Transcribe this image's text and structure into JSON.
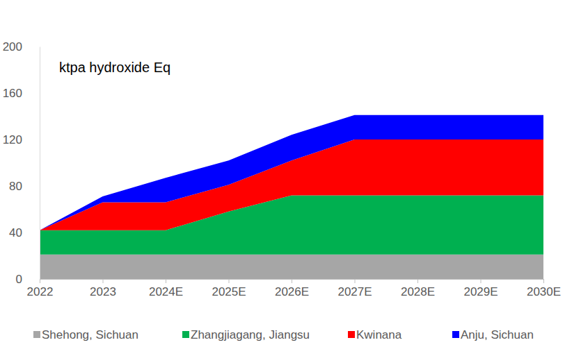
{
  "chart_data": {
    "type": "area",
    "stacked": true,
    "title": "ktpa hydroxide Eq",
    "categories": [
      "2022",
      "2023",
      "2024E",
      "2025E",
      "2026E",
      "2027E",
      "2028E",
      "2029E",
      "2030E"
    ],
    "series": [
      {
        "name": "Shehong, Sichuan",
        "color": "#a6a6a6",
        "values": [
          21,
          21,
          21,
          21,
          21,
          21,
          21,
          21,
          21
        ]
      },
      {
        "name": "Zhangjiagang, Jiangsu",
        "color": "#00b050",
        "values": [
          21,
          21,
          21,
          37,
          51,
          51,
          51,
          51,
          51
        ]
      },
      {
        "name": "Kwinana",
        "color": "#ff0000",
        "values": [
          0,
          24,
          24,
          23,
          30,
          48,
          48,
          48,
          48
        ]
      },
      {
        "name": "Anju, Sichuan",
        "color": "#0000ff",
        "values": [
          0,
          5,
          21,
          21,
          22,
          21,
          21,
          21,
          21
        ]
      }
    ],
    "ylim": [
      0,
      200
    ],
    "yticks": [
      0,
      40,
      80,
      120,
      160,
      200
    ],
    "grid": false,
    "legend": "bottom"
  }
}
